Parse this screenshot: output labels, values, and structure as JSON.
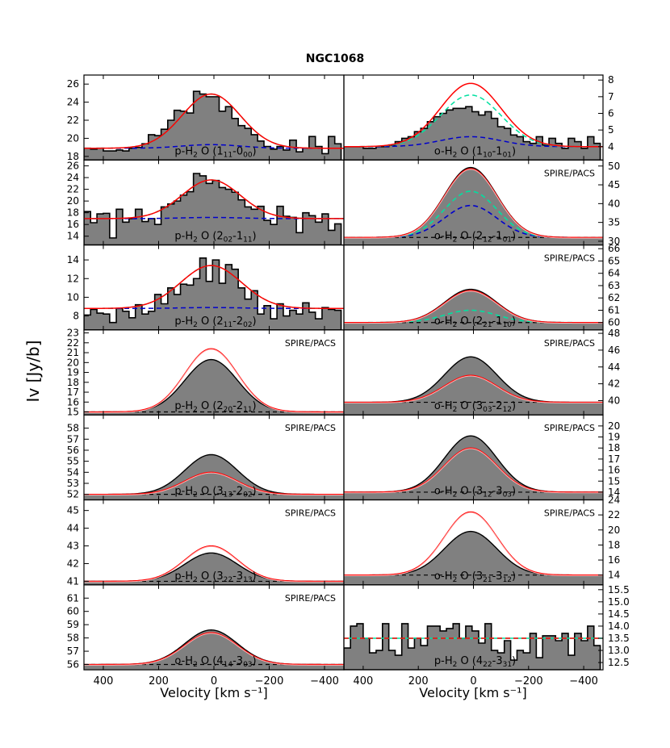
{
  "chart_data": {
    "type": "step-histogram-grid",
    "title": "NGC1068",
    "xlabel": "Velocity [km s⁻¹]",
    "ylabel": "Iv [Jy/b]",
    "xlim": [
      470,
      -470
    ],
    "xticks": [
      400,
      200,
      0,
      -200,
      -400
    ],
    "xtick_labels": [
      "400",
      "200",
      "0",
      "−200",
      "−400"
    ],
    "series_colors": {
      "observed_fill": "#808080",
      "total_fit": "#ff0000",
      "component_1": "#00e0a0",
      "component_2": "#0000cc",
      "model": "#000000",
      "model_dashed": "#ff4040"
    },
    "panels": [
      {
        "id": "p1",
        "column": "left",
        "row": 0,
        "label_prefix": "p-H",
        "label_mid": "O (1",
        "lab_a": "11",
        "lab_b": "-0",
        "lab_c": "00",
        "lab_d": ")",
        "annotation": "",
        "ylim": [
          17.6,
          27.0
        ],
        "yticks": [
          18,
          20,
          22,
          24,
          26
        ],
        "mode": "obs",
        "baseline": 18.9,
        "peak_total": 24.9,
        "peak_c1": 24.9,
        "peak_c2": 19.3,
        "sigma": 105,
        "center": 10,
        "obs_edges": [
          470,
          446,
          423,
          400,
          377,
          353,
          330,
          307,
          284,
          260,
          237,
          214,
          191,
          167,
          144,
          121,
          98,
          74,
          51,
          28,
          5,
          -19,
          -42,
          -65,
          -88,
          -112,
          -135,
          -158,
          -181,
          -205,
          -228,
          -251,
          -274,
          -298,
          -321,
          -344,
          -367,
          -391,
          -414,
          -437,
          -460
        ],
        "obs_values": [
          18.9,
          18.8,
          18.9,
          18.6,
          18.6,
          18.7,
          18.6,
          18.9,
          19.0,
          19.4,
          20.4,
          20.3,
          21.0,
          22.0,
          23.1,
          23.0,
          22.8,
          25.2,
          24.9,
          24.6,
          24.6,
          23.0,
          23.5,
          22.2,
          21.4,
          21.1,
          20.4,
          19.7,
          19.1,
          18.8,
          19.1,
          18.7,
          19.8,
          18.5,
          18.9,
          20.2,
          19.1,
          18.3,
          20.2,
          19.4
        ]
      },
      {
        "id": "p2",
        "column": "right",
        "row": 0,
        "label_prefix": "o-H",
        "label_mid": "O (1",
        "lab_a": "10",
        "lab_b": "-1",
        "lab_c": "01",
        "lab_d": ")",
        "annotation": "",
        "ylim": [
          3.2,
          8.3
        ],
        "yticks": [
          4,
          5,
          6,
          7,
          8
        ],
        "mode": "obs",
        "baseline": 4.0,
        "peak_total": 7.8,
        "peak_c1": 7.1,
        "peak_c2": 4.6,
        "sigma": 110,
        "center": 10,
        "obs_edges": [
          470,
          446,
          423,
          400,
          377,
          353,
          330,
          307,
          284,
          260,
          237,
          214,
          191,
          167,
          144,
          121,
          98,
          74,
          51,
          28,
          5,
          -19,
          -42,
          -65,
          -88,
          -112,
          -135,
          -158,
          -181,
          -205,
          -228,
          -251,
          -274,
          -298,
          -321,
          -344,
          -367,
          -391,
          -414,
          -437,
          -460
        ],
        "obs_values": [
          4.0,
          4.0,
          4.0,
          3.9,
          3.9,
          4.0,
          4.0,
          4.1,
          4.3,
          4.5,
          4.6,
          4.9,
          5.1,
          5.5,
          5.8,
          6.0,
          6.2,
          6.3,
          6.3,
          6.4,
          6.1,
          5.9,
          6.1,
          5.7,
          5.2,
          5.1,
          4.7,
          4.6,
          4.3,
          4.2,
          4.6,
          4.1,
          4.5,
          4.2,
          3.9,
          4.5,
          4.3,
          3.9,
          4.6,
          4.2
        ]
      },
      {
        "id": "p3",
        "column": "left",
        "row": 1,
        "label_prefix": "p-H",
        "label_mid": "O (2",
        "lab_a": "02",
        "lab_b": "-1",
        "lab_c": "11",
        "lab_d": ")",
        "annotation": "",
        "ylim": [
          12.5,
          27.0
        ],
        "yticks": [
          14,
          16,
          18,
          20,
          22,
          24,
          26
        ],
        "mode": "obs",
        "baseline": 17.0,
        "peak_total": 23.6,
        "peak_c1": 23.6,
        "peak_c2": 17.2,
        "sigma": 105,
        "center": 10,
        "obs_edges": [
          470,
          446,
          423,
          400,
          377,
          353,
          330,
          307,
          284,
          260,
          237,
          214,
          191,
          167,
          144,
          121,
          98,
          74,
          51,
          28,
          5,
          -19,
          -42,
          -65,
          -88,
          -112,
          -135,
          -158,
          -181,
          -205,
          -228,
          -251,
          -274,
          -298,
          -321,
          -344,
          -367,
          -391,
          -414,
          -437,
          -460
        ],
        "obs_values": [
          18.2,
          16.3,
          17.8,
          17.9,
          13.7,
          18.6,
          16.4,
          17.0,
          18.6,
          16.5,
          17.0,
          16.0,
          19.0,
          19.5,
          20.0,
          21.0,
          21.6,
          24.7,
          24.3,
          23.0,
          23.5,
          22.3,
          22.0,
          21.5,
          20.2,
          19.0,
          18.6,
          19.1,
          16.7,
          16.0,
          19.1,
          17.4,
          17.2,
          14.6,
          18.0,
          17.5,
          16.4,
          17.8,
          15.0,
          16.1
        ]
      },
      {
        "id": "p4",
        "column": "right",
        "row": 1,
        "label_prefix": "o-H",
        "label_mid": "O (2",
        "lab_a": "12",
        "lab_b": "-1",
        "lab_c": "01",
        "lab_d": ")",
        "annotation": "SPIRE/PACS",
        "ylim": [
          29.0,
          51.6
        ],
        "yticks": [
          30,
          35,
          40,
          45,
          50
        ],
        "mode": "model",
        "baseline": 31.0,
        "peak_model": 49.6,
        "peak_total": 49.3,
        "peak_c1": 43.3,
        "peak_c2": 39.5,
        "sigma": 95,
        "center": 10
      },
      {
        "id": "p5",
        "column": "left",
        "row": 2,
        "label_prefix": "p-H",
        "label_mid": "O (2",
        "lab_a": "11",
        "lab_b": "-2",
        "lab_c": "02",
        "lab_d": ")",
        "annotation": "",
        "ylim": [
          6.5,
          15.6
        ],
        "yticks": [
          8,
          10,
          12,
          14
        ],
        "mode": "obs",
        "baseline": 8.8,
        "peak_total": 13.4,
        "peak_c1": 13.4,
        "peak_c2": 8.9,
        "sigma": 110,
        "center": 10,
        "obs_edges": [
          470,
          446,
          423,
          400,
          377,
          353,
          330,
          307,
          284,
          260,
          237,
          214,
          191,
          167,
          144,
          121,
          98,
          74,
          51,
          28,
          5,
          -19,
          -42,
          -65,
          -88,
          -112,
          -135,
          -158,
          -181,
          -205,
          -228,
          -251,
          -274,
          -298,
          -321,
          -344,
          -367,
          -391,
          -414,
          -437,
          -460
        ],
        "obs_values": [
          8.1,
          8.7,
          8.3,
          8.2,
          7.3,
          8.8,
          8.5,
          7.8,
          9.2,
          8.2,
          8.5,
          10.3,
          9.3,
          11.0,
          10.3,
          11.4,
          11.3,
          12.0,
          14.2,
          11.7,
          14.0,
          11.5,
          13.5,
          13.0,
          11.0,
          9.8,
          10.7,
          8.2,
          9.1,
          7.7,
          9.3,
          8.0,
          8.6,
          8.2,
          9.4,
          8.4,
          7.7,
          8.9,
          8.7,
          8.6
        ]
      },
      {
        "id": "p6",
        "column": "right",
        "row": 2,
        "label_prefix": "o-H",
        "label_mid": "O (2",
        "lab_a": "21",
        "lab_b": "-1",
        "lab_c": "10",
        "lab_d": ")",
        "annotation": "SPIRE/PACS",
        "ylim": [
          59.4,
          66.3
        ],
        "yticks": [
          60,
          61,
          62,
          63,
          64,
          65,
          66
        ],
        "mode": "model",
        "baseline": 60.0,
        "peak_model": 62.7,
        "peak_total": 62.6,
        "peak_c1": 61.0,
        "peak_c2": 60.0,
        "sigma": 95,
        "center": 10
      },
      {
        "id": "p7",
        "column": "left",
        "row": 3,
        "label_prefix": "p-H",
        "label_mid": "O (2",
        "lab_a": "20",
        "lab_b": "-2",
        "lab_c": "11",
        "lab_d": ")",
        "annotation": "SPIRE/PACS",
        "ylim": [
          14.7,
          23.3
        ],
        "yticks": [
          15,
          16,
          17,
          18,
          19,
          20,
          21,
          22,
          23
        ],
        "mode": "model",
        "baseline": 15.0,
        "peak_model": 20.3,
        "peak_total": 21.4,
        "peak_c1": 15.0,
        "peak_c2": 15.0,
        "sigma": 95,
        "center": 10
      },
      {
        "id": "p8",
        "column": "right",
        "row": 3,
        "label_prefix": "o-H",
        "label_mid": "O (3",
        "lab_a": "03",
        "lab_b": "-2",
        "lab_c": "12",
        "lab_d": ")",
        "annotation": "SPIRE/PACS",
        "ylim": [
          38.3,
          48.4
        ],
        "yticks": [
          40,
          42,
          44,
          46,
          48
        ],
        "mode": "model",
        "baseline": 39.8,
        "peak_model": 45.2,
        "peak_total": 43.0,
        "peak_c1": 39.8,
        "peak_c2": 39.8,
        "sigma": 95,
        "center": 10
      },
      {
        "id": "p9",
        "column": "left",
        "row": 4,
        "label_prefix": "p-H",
        "label_mid": "O (3",
        "lab_a": "13",
        "lab_b": "-2",
        "lab_c": "02",
        "lab_d": ")",
        "annotation": "SPIRE/PACS",
        "ylim": [
          51.5,
          59.2
        ],
        "yticks": [
          52,
          53,
          54,
          55,
          56,
          57,
          58
        ],
        "mode": "model",
        "baseline": 52.0,
        "peak_model": 55.6,
        "peak_total": 54.0,
        "peak_c1": 52.0,
        "peak_c2": 52.0,
        "sigma": 95,
        "center": 10
      },
      {
        "id": "p10",
        "column": "right",
        "row": 4,
        "label_prefix": "o-H",
        "label_mid": "O (3",
        "lab_a": "12",
        "lab_b": "-3",
        "lab_c": "03",
        "lab_d": ")",
        "annotation": "SPIRE/PACS",
        "ylim": [
          13.3,
          21.0
        ],
        "yticks": [
          14,
          15,
          16,
          17,
          18,
          19,
          20
        ],
        "mode": "model",
        "baseline": 14.0,
        "peak_model": 19.1,
        "peak_total": 18.0,
        "peak_c1": 14.0,
        "peak_c2": 14.0,
        "sigma": 95,
        "center": 10
      },
      {
        "id": "p11",
        "column": "left",
        "row": 5,
        "label_prefix": "p-H",
        "label_mid": "O (3",
        "lab_a": "22",
        "lab_b": "-3",
        "lab_c": "13",
        "lab_d": ")",
        "annotation": "SPIRE/PACS",
        "ylim": [
          40.8,
          45.6
        ],
        "yticks": [
          41,
          42,
          43,
          44,
          45
        ],
        "mode": "model",
        "baseline": 41.0,
        "peak_model": 42.6,
        "peak_total": 43.0,
        "peak_c1": 41.0,
        "peak_c2": 41.0,
        "sigma": 95,
        "center": 10
      },
      {
        "id": "p12",
        "column": "right",
        "row": 5,
        "label_prefix": "o-H",
        "label_mid": "O (3",
        "lab_a": "21",
        "lab_b": "-3",
        "lab_c": "12",
        "lab_d": ")",
        "annotation": "SPIRE/PACS",
        "ylim": [
          12.7,
          24.0
        ],
        "yticks": [
          14,
          16,
          18,
          20,
          22,
          24
        ],
        "mode": "model",
        "baseline": 14.0,
        "peak_model": 19.8,
        "peak_total": 22.4,
        "peak_c1": 14.0,
        "peak_c2": 14.0,
        "sigma": 95,
        "center": 10
      },
      {
        "id": "p13",
        "column": "left",
        "row": 6,
        "label_prefix": "o-H",
        "label_mid": "O (4",
        "lab_a": "14",
        "lab_b": "-3",
        "lab_c": "03",
        "lab_d": ")",
        "annotation": "SPIRE/PACS",
        "ylim": [
          55.6,
          62.0
        ],
        "yticks": [
          56,
          57,
          58,
          59,
          60,
          61
        ],
        "mode": "model",
        "baseline": 56.0,
        "peak_model": 58.6,
        "peak_total": 58.4,
        "peak_c1": 56.0,
        "peak_c2": 56.0,
        "sigma": 95,
        "center": 10
      },
      {
        "id": "p14",
        "column": "right",
        "row": 6,
        "label_prefix": "p-H",
        "label_mid": "O (4",
        "lab_a": "22",
        "lab_b": "-3",
        "lab_c": "31",
        "lab_d": ")",
        "annotation": "",
        "ylim": [
          12.2,
          15.7
        ],
        "yticks": [
          12.5,
          13.0,
          13.5,
          14.0,
          14.5,
          15.0,
          15.5
        ],
        "mode": "flat",
        "baseline": 13.5,
        "obs_edges": [
          470,
          446,
          423,
          400,
          377,
          353,
          330,
          307,
          284,
          260,
          237,
          214,
          191,
          167,
          144,
          121,
          98,
          74,
          51,
          28,
          5,
          -19,
          -42,
          -65,
          -88,
          -112,
          -135,
          -158,
          -181,
          -205,
          -228,
          -251,
          -274,
          -298,
          -321,
          -344,
          -367,
          -391,
          -414,
          -437,
          -460
        ],
        "obs_values": [
          13.1,
          14.0,
          14.1,
          13.5,
          12.9,
          13.0,
          14.1,
          13.0,
          12.8,
          14.1,
          13.1,
          13.5,
          13.2,
          14.0,
          14.0,
          13.8,
          13.9,
          14.1,
          13.5,
          14.0,
          13.8,
          13.3,
          14.1,
          13.0,
          12.9,
          13.4,
          12.6,
          13.0,
          12.9,
          13.7,
          12.7,
          13.6,
          13.6,
          13.4,
          13.7,
          12.8,
          13.7,
          13.4,
          14.0,
          13.2
        ]
      }
    ]
  }
}
